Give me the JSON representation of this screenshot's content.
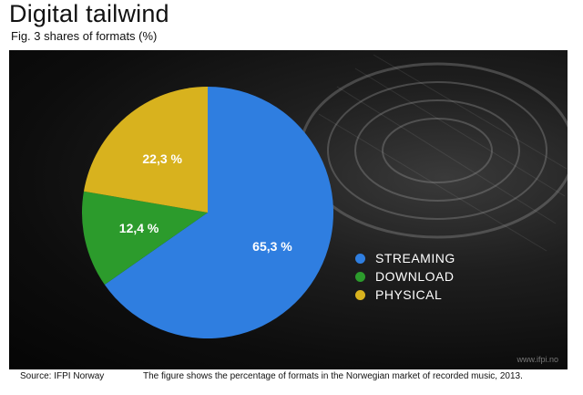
{
  "header": {
    "title": "Digital tailwind",
    "subtitle": "Fig. 3 shares of formats (%)"
  },
  "chart_data": {
    "type": "pie",
    "slices": [
      {
        "label": "STREAMING",
        "value": 65.3,
        "display": "65,3 %",
        "color": "#2f7ee0"
      },
      {
        "label": "DOWNLOAD",
        "value": 12.4,
        "display": "12,4 %",
        "color": "#2c9b2c"
      },
      {
        "label": "PHYSICAL",
        "value": 22.3,
        "display": "22,3 %",
        "color": "#d8b21e"
      }
    ],
    "legend_position": "right"
  },
  "footer": {
    "credit": "www.ifpi.no",
    "source": "Source: IFPI Norway",
    "caption": "The figure shows the percentage of formats in the Norwegian market of recorded music, 2013."
  }
}
